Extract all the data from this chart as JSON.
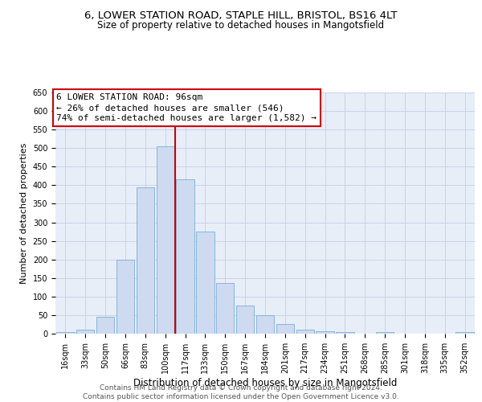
{
  "title_line1": "6, LOWER STATION ROAD, STAPLE HILL, BRISTOL, BS16 4LT",
  "title_line2": "Size of property relative to detached houses in Mangotsfield",
  "xlabel": "Distribution of detached houses by size in Mangotsfield",
  "ylabel": "Number of detached properties",
  "categories": [
    "16sqm",
    "33sqm",
    "50sqm",
    "66sqm",
    "83sqm",
    "100sqm",
    "117sqm",
    "133sqm",
    "150sqm",
    "167sqm",
    "184sqm",
    "201sqm",
    "217sqm",
    "234sqm",
    "251sqm",
    "268sqm",
    "285sqm",
    "301sqm",
    "318sqm",
    "335sqm",
    "352sqm"
  ],
  "values": [
    5,
    10,
    45,
    200,
    395,
    505,
    415,
    275,
    137,
    75,
    50,
    25,
    10,
    7,
    5,
    0,
    5,
    0,
    0,
    0,
    5
  ],
  "bar_color": "#cddaf0",
  "bar_edge_color": "#7baed4",
  "vline_color": "#cc0000",
  "vline_x_index": 5.5,
  "annotation_text": "6 LOWER STATION ROAD: 96sqm\n← 26% of detached houses are smaller (546)\n74% of semi-detached houses are larger (1,582) →",
  "annotation_box_facecolor": "#ffffff",
  "annotation_box_edgecolor": "#cc0000",
  "ylim_max": 650,
  "yticks": [
    0,
    50,
    100,
    150,
    200,
    250,
    300,
    350,
    400,
    450,
    500,
    550,
    600,
    650
  ],
  "grid_color": "#c8d4e8",
  "background_color": "#e8eef8",
  "footer_line1": "Contains HM Land Registry data © Crown copyright and database right 2024.",
  "footer_line2": "Contains public sector information licensed under the Open Government Licence v3.0.",
  "title_fontsize": 9.5,
  "subtitle_fontsize": 8.5,
  "tick_fontsize": 7,
  "ylabel_fontsize": 8,
  "xlabel_fontsize": 8.5,
  "footer_fontsize": 6.5,
  "annot_fontsize": 8
}
